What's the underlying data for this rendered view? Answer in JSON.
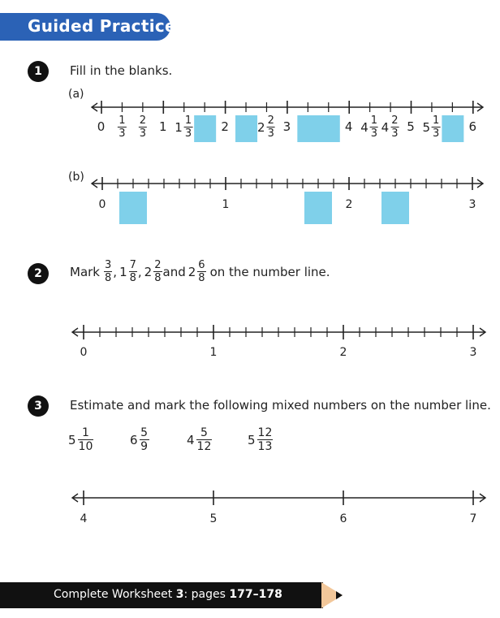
{
  "header": {
    "title": "Guided Practice"
  },
  "q1": {
    "number": "1",
    "instruction": "Fill in the blanks.",
    "a": {
      "label": "(a)",
      "labels": [
        {
          "w": "0",
          "n": "",
          "d": ""
        },
        {
          "w": "",
          "n": "1",
          "d": "3"
        },
        {
          "w": "",
          "n": "2",
          "d": "3"
        },
        {
          "w": "1",
          "n": "",
          "d": ""
        },
        {
          "w": "1",
          "n": "1",
          "d": "3"
        },
        {
          "w": "2",
          "n": "",
          "d": ""
        },
        {
          "w": "2",
          "n": "2",
          "d": "3"
        },
        {
          "w": "3",
          "n": "",
          "d": ""
        },
        {
          "w": "4",
          "n": "",
          "d": ""
        },
        {
          "w": "4",
          "n": "1",
          "d": "3"
        },
        {
          "w": "4",
          "n": "2",
          "d": "3"
        },
        {
          "w": "5",
          "n": "",
          "d": ""
        },
        {
          "w": "5",
          "n": "1",
          "d": "3"
        },
        {
          "w": "6",
          "n": "",
          "d": ""
        }
      ],
      "blank_values": [
        1.6667,
        2.3333,
        3.3333,
        3.6667,
        5.6667
      ]
    },
    "b": {
      "label": "(b)",
      "labels": [
        "0",
        "1",
        "2",
        "3"
      ],
      "blank_values": [
        0.25,
        1.75,
        2.375
      ]
    }
  },
  "q2": {
    "number": "2",
    "prefix": "Mark",
    "fractions": [
      {
        "w": "",
        "n": "3",
        "d": "8",
        "sep": ","
      },
      {
        "w": "1",
        "n": "7",
        "d": "8",
        "sep": ","
      },
      {
        "w": "2",
        "n": "2",
        "d": "8",
        "sep": " and"
      },
      {
        "w": "2",
        "n": "6",
        "d": "8",
        "sep": ""
      }
    ],
    "suffix": "on the number line.",
    "labels": [
      "0",
      "1",
      "2",
      "3"
    ]
  },
  "q3": {
    "number": "3",
    "instruction": "Estimate and mark the following mixed numbers on the number line.",
    "items": [
      {
        "w": "5",
        "n": "1",
        "d": "10"
      },
      {
        "w": "6",
        "n": "5",
        "d": "9"
      },
      {
        "w": "4",
        "n": "5",
        "d": "12"
      },
      {
        "w": "5",
        "n": "12",
        "d": "13"
      }
    ],
    "labels": [
      "4",
      "5",
      "6",
      "7"
    ]
  },
  "footer": {
    "prefix": "Complete Worksheet ",
    "worksheet": "3",
    "mid": ": pages ",
    "pages": "177–178"
  },
  "colors": {
    "accent": "#2b62b6",
    "blank": "#7fd0ea",
    "pencil_tip": "#f2c79a"
  }
}
